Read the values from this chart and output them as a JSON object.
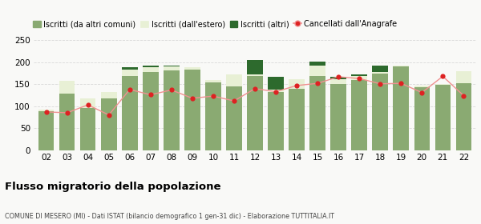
{
  "years": [
    "02",
    "03",
    "04",
    "05",
    "06",
    "07",
    "08",
    "09",
    "10",
    "11",
    "12",
    "13",
    "14",
    "15",
    "16",
    "17",
    "18",
    "19",
    "20",
    "21",
    "22"
  ],
  "iscritti_comuni": [
    88,
    128,
    95,
    118,
    168,
    178,
    182,
    183,
    155,
    145,
    168,
    132,
    140,
    168,
    150,
    160,
    175,
    190,
    143,
    148,
    152
  ],
  "iscritti_estero": [
    5,
    30,
    22,
    15,
    15,
    10,
    8,
    5,
    5,
    28,
    5,
    5,
    22,
    25,
    12,
    8,
    3,
    3,
    3,
    3,
    28
  ],
  "iscritti_altri": [
    0,
    0,
    0,
    0,
    5,
    5,
    3,
    0,
    0,
    0,
    32,
    30,
    0,
    8,
    5,
    5,
    15,
    0,
    0,
    0,
    0
  ],
  "cancellati": [
    87,
    85,
    103,
    80,
    138,
    126,
    137,
    118,
    123,
    112,
    140,
    133,
    147,
    152,
    167,
    163,
    151,
    152,
    131,
    168,
    124
  ],
  "color_comuni": "#8aaa72",
  "color_estero": "#e8f0d5",
  "color_altri": "#2d6a2d",
  "color_cancellati": "#dd2222",
  "color_line": "#f09090",
  "bg_color": "#f9f9f7",
  "ylim": [
    0,
    250
  ],
  "yticks": [
    0,
    50,
    100,
    150,
    200,
    250
  ],
  "title": "Flusso migratorio della popolazione",
  "subtitle": "COMUNE DI MESERO (MI) - Dati ISTAT (bilancio demografico 1 gen-31 dic) - Elaborazione TUTTITALIA.IT",
  "legend_labels": [
    "Iscritti (da altri comuni)",
    "Iscritti (dall'estero)",
    "Iscritti (altri)",
    "Cancellati dall'Anagrafe"
  ],
  "grid_color": "#d8d8d8"
}
